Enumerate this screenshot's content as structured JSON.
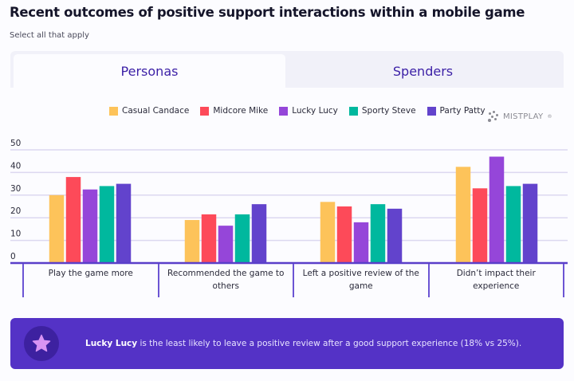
{
  "header": {
    "title": "Recent outcomes of positive support interactions within a mobile game",
    "subtitle": "Select all that apply"
  },
  "tabs": [
    {
      "label": "Personas",
      "active": true
    },
    {
      "label": "Spenders",
      "active": false
    }
  ],
  "logo": {
    "text": "MISTPLAY",
    "mark": "®"
  },
  "callout": {
    "icon": "star-icon",
    "highlight": "Lucky Lucy",
    "text": " is the least likely to leave a positive review after a good support experience (18% vs 25%)."
  },
  "chart_data": {
    "type": "bar",
    "title": "Recent outcomes of positive support interactions within a mobile game",
    "xlabel": "",
    "ylabel": "",
    "ylim": [
      0,
      50
    ],
    "yticks": [
      0,
      10,
      20,
      30,
      40,
      50
    ],
    "grid": true,
    "legend_position": "top",
    "categories": [
      "Play the game more",
      "Recommended the game to others",
      "Left a positive review of the game",
      "Didn’t impact their experience"
    ],
    "series": [
      {
        "name": "Casual Candace",
        "color": "#fdc35a",
        "values": [
          30,
          19,
          27,
          42.5
        ]
      },
      {
        "name": "Midcore Mike",
        "color": "#fd4a59",
        "values": [
          38,
          21.5,
          25,
          33
        ]
      },
      {
        "name": "Lucky Lucy",
        "color": "#9546d9",
        "values": [
          32.5,
          16.5,
          18,
          47
        ]
      },
      {
        "name": "Sporty Steve",
        "color": "#00b89e",
        "values": [
          34,
          21.5,
          26,
          34
        ]
      },
      {
        "name": "Party Patty",
        "color": "#6243cc",
        "values": [
          35,
          26,
          24,
          35
        ]
      }
    ]
  }
}
